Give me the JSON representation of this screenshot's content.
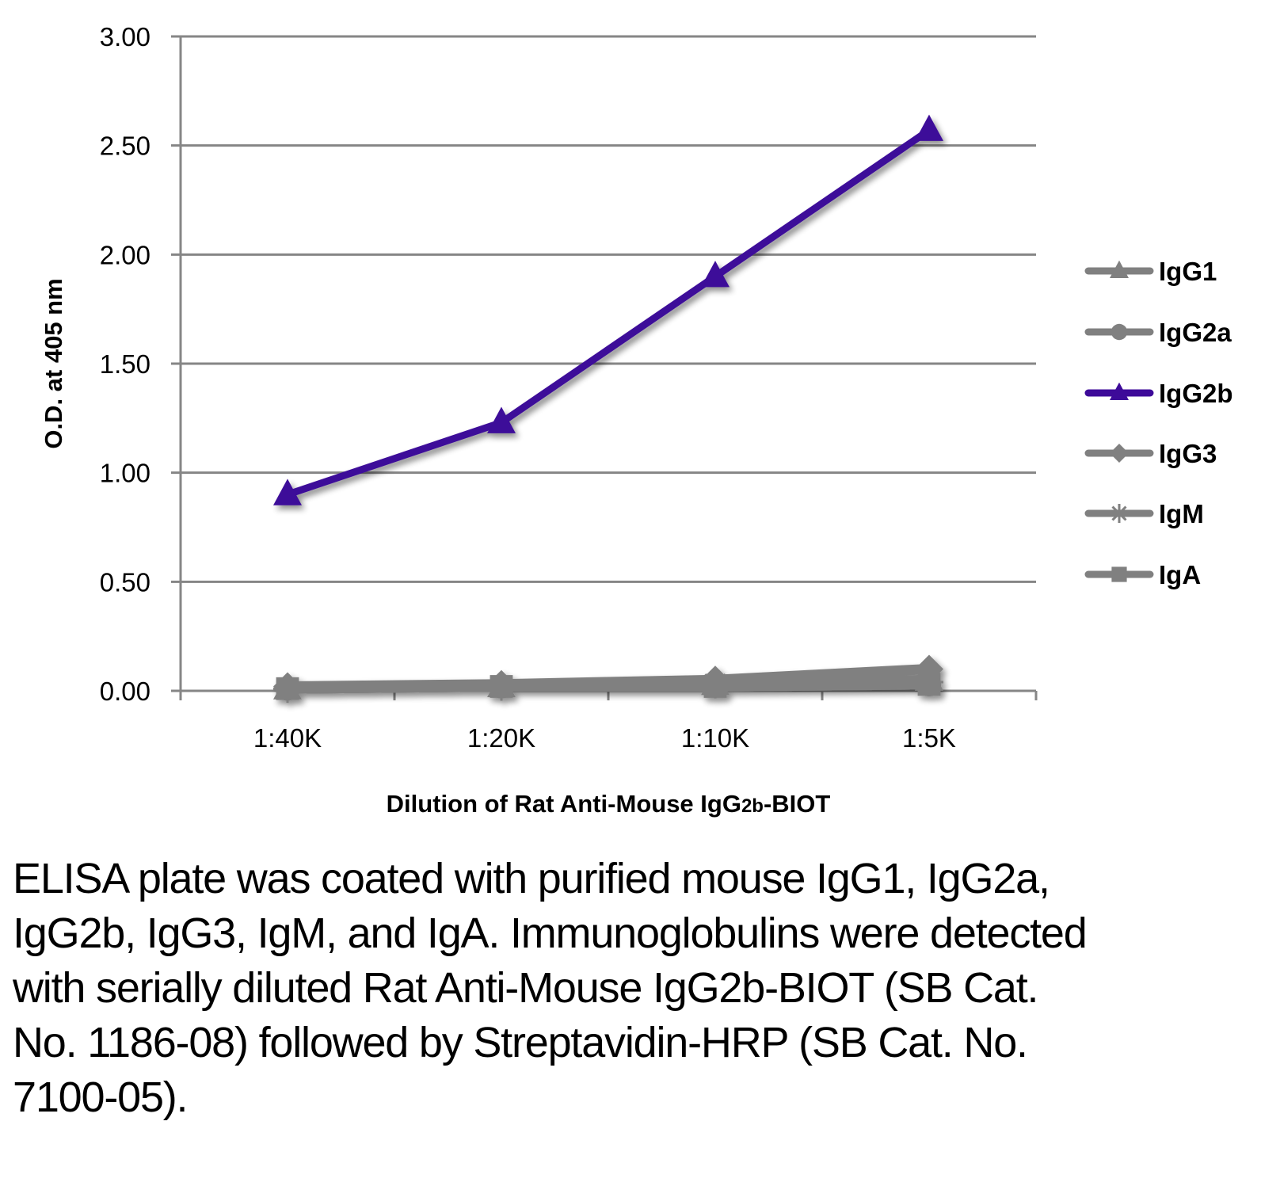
{
  "chart_data": {
    "type": "line",
    "title": "",
    "xlabel": "Dilution of Rat Anti-Mouse IgG2b-BIOT",
    "ylabel": "O.D. at 405 nm",
    "categories": [
      "1:40K",
      "1:20K",
      "1:10K",
      "1:5K"
    ],
    "ylim": [
      0,
      3
    ],
    "yticks": [
      "0.00",
      "0.50",
      "1.00",
      "1.50",
      "2.00",
      "2.50",
      "3.00"
    ],
    "grid": true,
    "legend_position": "right",
    "series": [
      {
        "name": "IgG1",
        "marker": "triangle",
        "color": "#808080",
        "values": [
          0.01,
          0.02,
          0.03,
          0.05
        ]
      },
      {
        "name": "IgG2a",
        "marker": "circle",
        "color": "#808080",
        "values": [
          0.01,
          0.02,
          0.03,
          0.03
        ]
      },
      {
        "name": "IgG2b",
        "marker": "triangle",
        "color": "#3d0a99",
        "values": [
          0.9,
          1.23,
          1.9,
          2.57
        ]
      },
      {
        "name": "IgG3",
        "marker": "diamond",
        "color": "#808080",
        "values": [
          0.02,
          0.03,
          0.05,
          0.1
        ]
      },
      {
        "name": "IgM",
        "marker": "star",
        "color": "#808080",
        "values": [
          0.01,
          0.02,
          0.03,
          0.04
        ]
      },
      {
        "name": "IgA",
        "marker": "square",
        "color": "#808080",
        "values": [
          0.01,
          0.02,
          0.02,
          0.03
        ]
      }
    ]
  },
  "caption": "ELISA plate was coated with purified mouse IgG1, IgG2a, IgG2b, IgG3, IgM, and IgA. Immunoglobulins were detected with serially diluted Rat Anti-Mouse IgG2b-BIOT (SB Cat. No. 1186-08) followed by Streptavidin-HRP (SB Cat. No. 7100-05).",
  "xlabel_parts": {
    "prefix": "Dilution of Rat Anti-Mouse IgG",
    "sub": "2b",
    "suffix": "-BIOT"
  }
}
